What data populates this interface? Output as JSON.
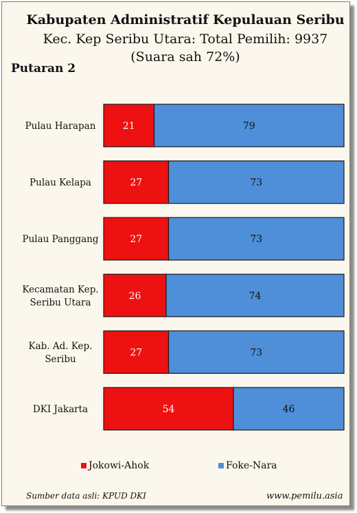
{
  "header": {
    "title": "Kabupaten Administratif Kepulauan Seribu",
    "subtitle": "Kec. Kep Seribu Utara: Total Pemilih: 9937",
    "note": "(Suara sah 72%)",
    "round_label": "Putaran 2"
  },
  "footer": {
    "source": "Sumber data asli: KPUD DKI",
    "website": "www.pemilu.asia"
  },
  "chart_data": {
    "type": "bar",
    "orientation": "horizontal",
    "stacked": true,
    "percent_stacked": true,
    "categories": [
      "Pulau Harapan",
      "Pulau Kelapa",
      "Pulau Panggang",
      "Kecamatan Kep. Seribu Utara",
      "Kab. Ad. Kep. Seribu",
      "DKI Jakarta"
    ],
    "category_lines": [
      [
        "Pulau Harapan"
      ],
      [
        "Pulau Kelapa"
      ],
      [
        "Pulau Panggang"
      ],
      [
        "Kecamatan Kep.",
        "Seribu Utara"
      ],
      [
        "Kab. Ad. Kep.",
        "Seribu"
      ],
      [
        "DKI Jakarta"
      ]
    ],
    "series": [
      {
        "name": "Jokowi-Ahok",
        "color": "#ee1111",
        "values": [
          21,
          27,
          27,
          26,
          27,
          54
        ]
      },
      {
        "name": "Foke-Nara",
        "color": "#4f8ed9",
        "values": [
          79,
          73,
          73,
          74,
          73,
          46
        ]
      }
    ],
    "xlim": [
      0,
      100
    ],
    "legend_position": "bottom",
    "grid": false
  }
}
